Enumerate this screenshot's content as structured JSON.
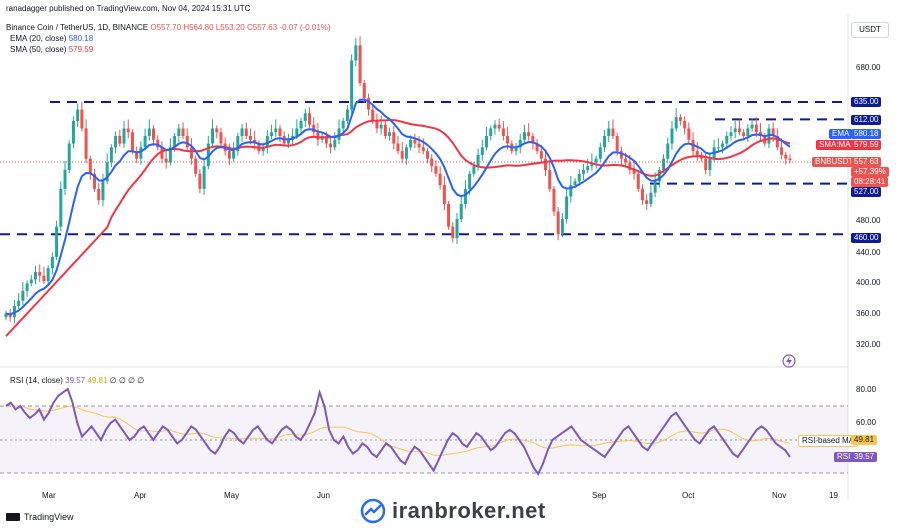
{
  "header": {
    "published_line": "ranadagger published on TradingView.com, Nov 04, 2024 15:31 UTC",
    "symbol_line": "Binance Coin / TetherUS, 1D, BINANCE",
    "ohlc": {
      "o": "O557.70",
      "h": "H564.80",
      "l": "L553.20",
      "c": "C557.63",
      "chg": "-0.07 (-0.01%)"
    },
    "ema_label": "EMA (20, close)",
    "ema_value": "580.18",
    "sma_label": "SMA (50, close)",
    "sma_value": "579.59",
    "rsi_label": "RSI (14, close)",
    "rsi_value": "39.57",
    "rsi_ma_value": "49.81",
    "rsi_extra": "∅ ∅ ∅ ∅"
  },
  "currency_button": "USDT",
  "footer": {
    "tv_brand": "TradingView",
    "watermark": "iranbroker.net"
  },
  "colors": {
    "up": "#26a69a",
    "down": "#ef5350",
    "ema": "#2962ff",
    "sma": "#f23645",
    "rsi": "#7e57c2",
    "rsi_ma": "#f9c74f",
    "level": "#0b1a9e"
  },
  "tags": {
    "r635": "635.00",
    "r612": "612.00",
    "ema": "EMA",
    "ema_val": "580.18",
    "sma": "SMA:MA",
    "sma_val": "579.59",
    "sym": "BNBUSDT",
    "sym_val": "557.63",
    "pct": "+57.39%",
    "timer": "08:28:41",
    "s527": "527.00",
    "s460": "460.00",
    "rsima": "RSI-based MA",
    "rsima_val": "49.81",
    "rsi": "RSI",
    "rsi_val": "39.57"
  },
  "chart_data": [
    {
      "type": "candlestick",
      "title": "Binance Coin / TetherUS, 1D, BINANCE",
      "y_axis_ticks": [
        320,
        360,
        400,
        440,
        480,
        527,
        580,
        612,
        635,
        680
      ],
      "y_tick_labels": [
        "320.00",
        "360.00",
        "400.00",
        "440.00",
        "480.00",
        "680.00"
      ],
      "ylim": [
        290,
        730
      ],
      "x_tick_labels": [
        "Mar",
        "Apr",
        "May",
        "Jun",
        "Sep",
        "Oct",
        "Nov",
        "19"
      ],
      "horizontal_levels": [
        {
          "value": 635,
          "label": "635.00"
        },
        {
          "value": 612,
          "label": "612.00"
        },
        {
          "value": 527,
          "label": "527.00"
        },
        {
          "value": 460,
          "label": "460.00"
        }
      ],
      "indicators": [
        {
          "name": "EMA (20, close)",
          "last": 580.18
        },
        {
          "name": "SMA (50, close)",
          "last": 579.59
        }
      ],
      "closes_approx": [
        355,
        350,
        365,
        372,
        385,
        395,
        400,
        410,
        405,
        398,
        415,
        430,
        470,
        520,
        545,
        580,
        610,
        625,
        600,
        560,
        540,
        520,
        505,
        530,
        555,
        575,
        590,
        580,
        600,
        595,
        570,
        560,
        575,
        590,
        600,
        585,
        575,
        560,
        555,
        575,
        590,
        600,
        590,
        575,
        560,
        540,
        520,
        550,
        580,
        600,
        595,
        580,
        570,
        560,
        570,
        590,
        600,
        590,
        585,
        580,
        570,
        575,
        590,
        595,
        600,
        590,
        580,
        585,
        590,
        600,
        610,
        620,
        605,
        595,
        585,
        590,
        580,
        575,
        585,
        600,
        610,
        625,
        690,
        710,
        660,
        640,
        625,
        610,
        600,
        605,
        590,
        595,
        580,
        570,
        560,
        575,
        585,
        580,
        575,
        570,
        560,
        550,
        540,
        525,
        500,
        470,
        455,
        480,
        500,
        520,
        540,
        550,
        565,
        575,
        590,
        600,
        605,
        600,
        590,
        580,
        570,
        575,
        585,
        595,
        590,
        580,
        570,
        560,
        545,
        520,
        490,
        460,
        480,
        510,
        525,
        530,
        540,
        545,
        550,
        555,
        560,
        575,
        590,
        600,
        590,
        570,
        560,
        555,
        545,
        540,
        520,
        505,
        500,
        515,
        530,
        545,
        560,
        580,
        600,
        615,
        610,
        600,
        585,
        570,
        565,
        560,
        545,
        560,
        575,
        575,
        580,
        590,
        595,
        600,
        595,
        590,
        600,
        605,
        595,
        590,
        580,
        600,
        590,
        575,
        565,
        560,
        558
      ]
    },
    {
      "type": "line",
      "title": "RSI (14, close)",
      "y_axis_ticks": [
        40,
        60,
        80
      ],
      "y_tick_labels": [
        "60.00",
        "80.00"
      ],
      "ylim": [
        25,
        90
      ],
      "overbought": 70,
      "oversold": 30,
      "series": [
        {
          "name": "RSI",
          "last": 39.57
        },
        {
          "name": "RSI-based MA",
          "last": 49.81
        }
      ],
      "rsi_approx": [
        70,
        72,
        68,
        70,
        66,
        63,
        65,
        68,
        62,
        66,
        72,
        76,
        78,
        80,
        72,
        60,
        52,
        55,
        58,
        54,
        50,
        56,
        60,
        62,
        58,
        54,
        50,
        52,
        56,
        58,
        54,
        50,
        54,
        58,
        56,
        52,
        48,
        50,
        54,
        58,
        56,
        52,
        48,
        44,
        42,
        46,
        52,
        56,
        54,
        50,
        48,
        52,
        56,
        58,
        54,
        50,
        48,
        52,
        56,
        58,
        56,
        52,
        50,
        54,
        60,
        66,
        78,
        70,
        56,
        50,
        48,
        52,
        46,
        42,
        44,
        48,
        46,
        42,
        40,
        44,
        48,
        46,
        42,
        38,
        36,
        42,
        46,
        44,
        40,
        36,
        32,
        38,
        44,
        50,
        54,
        52,
        48,
        46,
        50,
        54,
        52,
        48,
        44,
        46,
        50,
        54,
        56,
        54,
        50,
        46,
        40,
        34,
        30,
        36,
        44,
        50,
        52,
        54,
        56,
        58,
        54,
        50,
        48,
        46,
        44,
        42,
        40,
        44,
        48,
        52,
        56,
        58,
        54,
        50,
        46,
        44,
        48,
        52,
        56,
        60,
        64,
        66,
        62,
        58,
        54,
        50,
        48,
        52,
        56,
        58,
        54,
        50,
        46,
        42,
        40,
        44,
        48,
        52,
        56,
        58,
        56,
        52,
        48,
        46,
        44,
        40
      ]
    }
  ]
}
